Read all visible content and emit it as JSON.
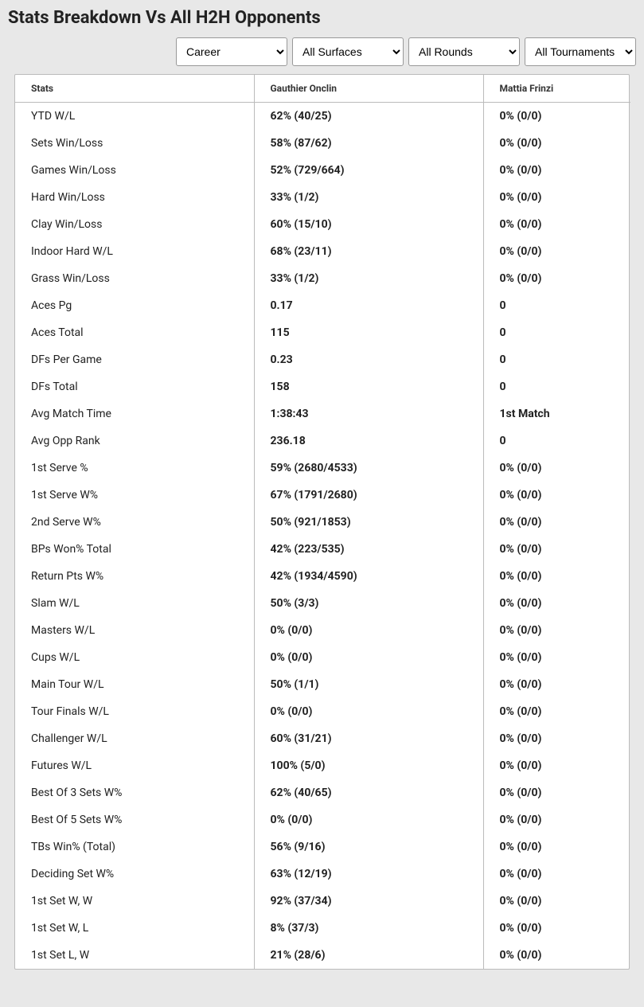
{
  "title": "Stats Breakdown Vs All H2H Opponents",
  "filters": {
    "period": {
      "selected": "Career",
      "options": [
        "Career"
      ]
    },
    "surface": {
      "selected": "All Surfaces",
      "options": [
        "All Surfaces"
      ]
    },
    "round": {
      "selected": "All Rounds",
      "options": [
        "All Rounds"
      ]
    },
    "tournament": {
      "selected": "All Tournaments",
      "options": [
        "All Tournaments"
      ]
    }
  },
  "headers": {
    "stat": "Stats",
    "player1": "Gauthier Onclin",
    "player2": "Mattia Frinzi"
  },
  "rows": [
    {
      "stat": "YTD W/L",
      "p1": "62% (40/25)",
      "p2": "0% (0/0)"
    },
    {
      "stat": "Sets Win/Loss",
      "p1": "58% (87/62)",
      "p2": "0% (0/0)"
    },
    {
      "stat": "Games Win/Loss",
      "p1": "52% (729/664)",
      "p2": "0% (0/0)"
    },
    {
      "stat": "Hard Win/Loss",
      "p1": "33% (1/2)",
      "p2": "0% (0/0)"
    },
    {
      "stat": "Clay Win/Loss",
      "p1": "60% (15/10)",
      "p2": "0% (0/0)"
    },
    {
      "stat": "Indoor Hard W/L",
      "p1": "68% (23/11)",
      "p2": "0% (0/0)"
    },
    {
      "stat": "Grass Win/Loss",
      "p1": "33% (1/2)",
      "p2": "0% (0/0)"
    },
    {
      "stat": "Aces Pg",
      "p1": "0.17",
      "p2": "0"
    },
    {
      "stat": "Aces Total",
      "p1": "115",
      "p2": "0"
    },
    {
      "stat": "DFs Per Game",
      "p1": "0.23",
      "p2": "0"
    },
    {
      "stat": "DFs Total",
      "p1": "158",
      "p2": "0"
    },
    {
      "stat": "Avg Match Time",
      "p1": "1:38:43",
      "p2": "1st Match"
    },
    {
      "stat": "Avg Opp Rank",
      "p1": "236.18",
      "p2": "0"
    },
    {
      "stat": "1st Serve %",
      "p1": "59% (2680/4533)",
      "p2": "0% (0/0)"
    },
    {
      "stat": "1st Serve W%",
      "p1": "67% (1791/2680)",
      "p2": "0% (0/0)"
    },
    {
      "stat": "2nd Serve W%",
      "p1": "50% (921/1853)",
      "p2": "0% (0/0)"
    },
    {
      "stat": "BPs Won% Total",
      "p1": "42% (223/535)",
      "p2": "0% (0/0)"
    },
    {
      "stat": "Return Pts W%",
      "p1": "42% (1934/4590)",
      "p2": "0% (0/0)"
    },
    {
      "stat": "Slam W/L",
      "p1": "50% (3/3)",
      "p2": "0% (0/0)"
    },
    {
      "stat": "Masters W/L",
      "p1": "0% (0/0)",
      "p2": "0% (0/0)"
    },
    {
      "stat": "Cups W/L",
      "p1": "0% (0/0)",
      "p2": "0% (0/0)"
    },
    {
      "stat": "Main Tour W/L",
      "p1": "50% (1/1)",
      "p2": "0% (0/0)"
    },
    {
      "stat": "Tour Finals W/L",
      "p1": "0% (0/0)",
      "p2": "0% (0/0)"
    },
    {
      "stat": "Challenger W/L",
      "p1": "60% (31/21)",
      "p2": "0% (0/0)"
    },
    {
      "stat": "Futures W/L",
      "p1": "100% (5/0)",
      "p2": "0% (0/0)"
    },
    {
      "stat": "Best Of 3 Sets W%",
      "p1": "62% (40/65)",
      "p2": "0% (0/0)"
    },
    {
      "stat": "Best Of 5 Sets W%",
      "p1": "0% (0/0)",
      "p2": "0% (0/0)"
    },
    {
      "stat": "TBs Win% (Total)",
      "p1": "56% (9/16)",
      "p2": "0% (0/0)"
    },
    {
      "stat": "Deciding Set W%",
      "p1": "63% (12/19)",
      "p2": "0% (0/0)"
    },
    {
      "stat": "1st Set W, W",
      "p1": "92% (37/34)",
      "p2": "0% (0/0)"
    },
    {
      "stat": "1st Set W, L",
      "p1": "8% (37/3)",
      "p2": "0% (0/0)"
    },
    {
      "stat": "1st Set L, W",
      "p1": "21% (28/6)",
      "p2": "0% (0/0)"
    }
  ],
  "colors": {
    "page_bg": "#e8e8e8",
    "table_bg": "#ffffff",
    "border": "#bbbbbb",
    "text": "#222222",
    "header_text": "#333333"
  }
}
